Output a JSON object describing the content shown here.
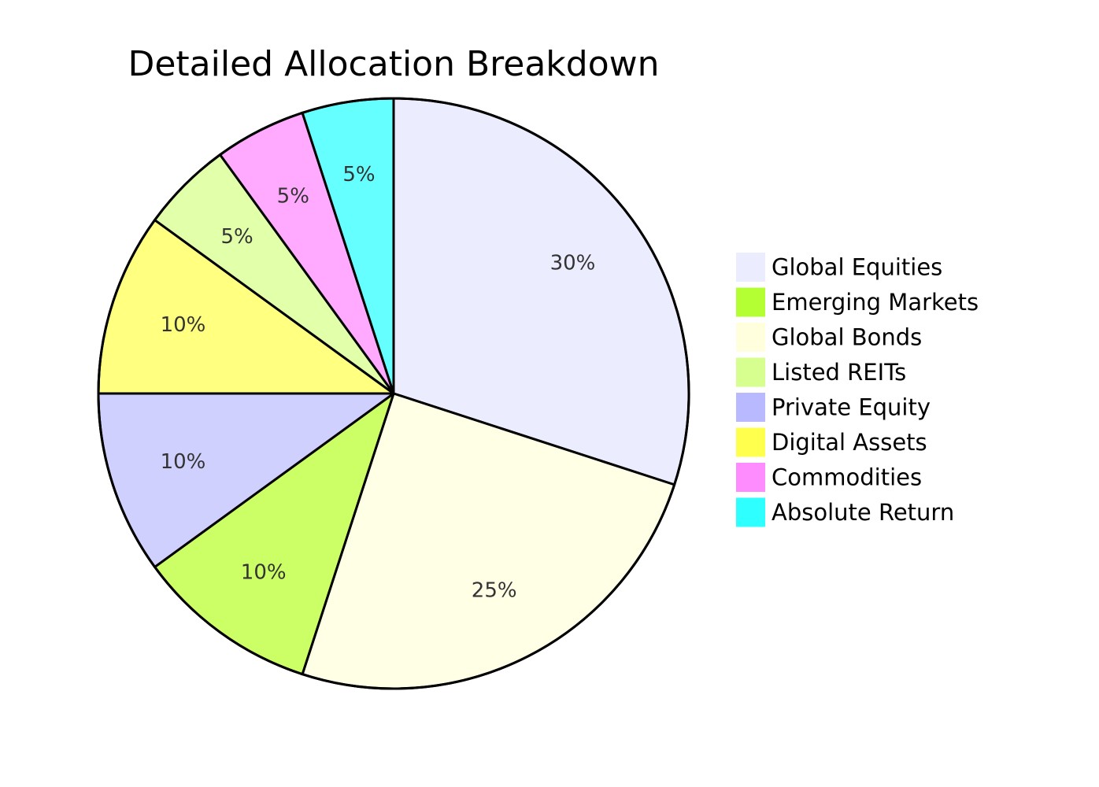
{
  "chart_data": {
    "type": "pie",
    "title": "Detailed Allocation Breakdown",
    "slices": [
      {
        "label": "Global Equities",
        "value": 30,
        "display": "30%",
        "color": "#ececff",
        "legend_color": "#ececff"
      },
      {
        "label": "Global Bonds",
        "value": 25,
        "display": "25%",
        "color": "#ffffe6",
        "legend_color": "#ffffde"
      },
      {
        "label": "Emerging Markets",
        "value": 10,
        "display": "10%",
        "color": "#ccff66",
        "legend_color": "#b3ff33"
      },
      {
        "label": "Private Equity",
        "value": 10,
        "display": "10%",
        "color": "#d0d0ff",
        "legend_color": "#b9b9ff"
      },
      {
        "label": "Digital Assets",
        "value": 10,
        "display": "10%",
        "color": "#ffff80",
        "legend_color": "#ffff4d"
      },
      {
        "label": "Listed REITs",
        "value": 5,
        "display": "5%",
        "color": "#e2ffaa",
        "legend_color": "#d6ff8f"
      },
      {
        "label": "Commodities",
        "value": 5,
        "display": "5%",
        "color": "#ffaaff",
        "legend_color": "#ff8cff"
      },
      {
        "label": "Absolute Return",
        "value": 5,
        "display": "5%",
        "color": "#66ffff",
        "legend_color": "#2effff"
      }
    ],
    "legend_order": [
      "Global Equities",
      "Emerging Markets",
      "Global Bonds",
      "Listed REITs",
      "Private Equity",
      "Digital Assets",
      "Commodities",
      "Absolute Return"
    ],
    "legend_position": "right",
    "start_angle": "top",
    "direction": "clockwise",
    "stroke_color": "#000000"
  }
}
